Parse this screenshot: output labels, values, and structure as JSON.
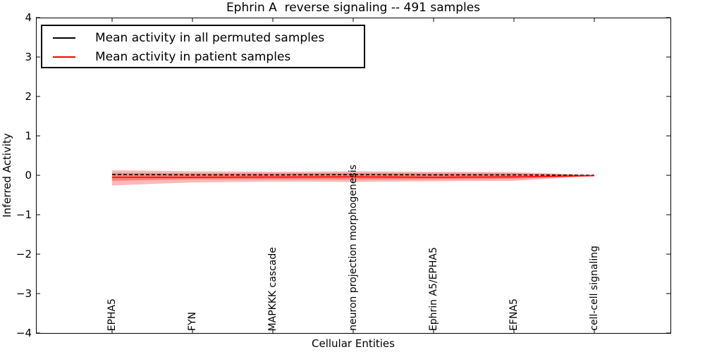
{
  "title": "Ephrin A  reverse signaling -- 491 samples",
  "legend": {
    "items": [
      {
        "label": "Mean activity in all permuted samples",
        "color": "#000000"
      },
      {
        "label": "Mean activity in patient samples",
        "color": "#ff0000"
      }
    ]
  },
  "chart_data": {
    "type": "line",
    "title": "Ephrin A  reverse signaling -- 491 samples",
    "xlabel": "Cellular Entities",
    "ylabel": "Inferred Activity",
    "ylim": [
      -4,
      4
    ],
    "ytick_labels": [
      "4",
      "3",
      "2",
      "1",
      "0",
      "−1",
      "−2",
      "−3",
      "−4"
    ],
    "grid": false,
    "legend_position": "upper left",
    "categories": [
      "EPHA5",
      "FYN",
      "MAPKKK cascade",
      "neuron projection morphogenesis",
      "Ephrin A5/EPHA5",
      "EFNA5",
      "cell-cell signaling"
    ],
    "series": [
      {
        "name": "Mean activity in all permuted samples",
        "color": "#000000",
        "style": "dashed",
        "values": [
          0.02,
          0.01,
          0.01,
          0.015,
          0.01,
          0.01,
          0.0
        ]
      },
      {
        "name": "Mean activity in patient samples",
        "color": "#ff0000",
        "style": "solid",
        "values": [
          -0.05,
          -0.05,
          -0.045,
          -0.04,
          -0.05,
          -0.04,
          -0.01
        ]
      }
    ],
    "bands": [
      {
        "name": "patient-activity-outer-band",
        "color": "#ff0000",
        "opacity": 0.28,
        "upper": [
          0.13,
          0.1,
          0.09,
          0.1,
          0.09,
          0.08,
          0.01
        ],
        "lower": [
          -0.26,
          -0.18,
          -0.16,
          -0.17,
          -0.15,
          -0.14,
          -0.02
        ]
      },
      {
        "name": "patient-activity-inner-band",
        "color": "#ff0000",
        "opacity": 0.3,
        "upper": [
          0.06,
          0.05,
          0.05,
          0.06,
          0.05,
          0.05,
          0.005
        ],
        "lower": [
          -0.14,
          -0.1,
          -0.1,
          -0.11,
          -0.1,
          -0.09,
          -0.01
        ]
      }
    ]
  }
}
